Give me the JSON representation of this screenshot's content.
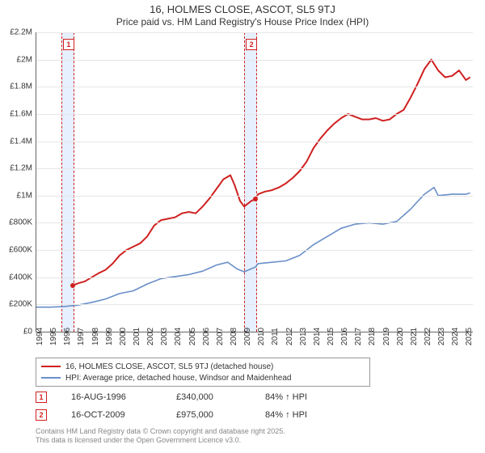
{
  "title": {
    "line1": "16, HOLMES CLOSE, ASCOT, SL5 9TJ",
    "line2": "Price paid vs. HM Land Registry's House Price Index (HPI)",
    "fontsize1": 13,
    "fontsize2": 12,
    "color": "#333333"
  },
  "chart": {
    "type": "line",
    "background_color": "#ffffff",
    "grid_color": "#e6e6e6",
    "axis_color": "#666666",
    "xlim": [
      1994,
      2025.5
    ],
    "ylim": [
      0,
      2200000
    ],
    "ytick_step": 200000,
    "yticks": [
      "£0",
      "£200K",
      "£400K",
      "£600K",
      "£800K",
      "£1M",
      "£1.2M",
      "£1.4M",
      "£1.6M",
      "£1.8M",
      "£2M",
      "£2.2M"
    ],
    "xticks": [
      1994,
      1995,
      1996,
      1997,
      1998,
      1999,
      2000,
      2001,
      2002,
      2003,
      2004,
      2005,
      2006,
      2007,
      2008,
      2009,
      2010,
      2011,
      2012,
      2013,
      2014,
      2015,
      2016,
      2017,
      2018,
      2019,
      2020,
      2021,
      2022,
      2023,
      2024,
      2025
    ],
    "label_fontsize": 10,
    "shaded_bands": [
      {
        "x_from": 1995.8,
        "x_to": 1996.65,
        "fill": "#e6f0ff",
        "border": "#d02020",
        "marker": "1",
        "marker_y": 2150000
      },
      {
        "x_from": 2009.0,
        "x_to": 2009.8,
        "fill": "#e6f0ff",
        "border": "#d02020",
        "marker": "2",
        "marker_y": 2150000
      }
    ],
    "series": [
      {
        "name": "subject",
        "label": "16, HOLMES CLOSE, ASCOT, SL5 9TJ (detached house)",
        "color": "#d02020",
        "line_width": 2,
        "points": [
          [
            1996.63,
            340000
          ],
          [
            1997,
            355000
          ],
          [
            1997.5,
            370000
          ],
          [
            1998,
            400000
          ],
          [
            1998.5,
            430000
          ],
          [
            1999,
            455000
          ],
          [
            1999.5,
            500000
          ],
          [
            2000,
            560000
          ],
          [
            2000.5,
            600000
          ],
          [
            2001,
            625000
          ],
          [
            2001.5,
            650000
          ],
          [
            2002,
            700000
          ],
          [
            2002.5,
            780000
          ],
          [
            2003,
            820000
          ],
          [
            2003.5,
            830000
          ],
          [
            2004,
            840000
          ],
          [
            2004.5,
            870000
          ],
          [
            2005,
            880000
          ],
          [
            2005.5,
            870000
          ],
          [
            2006,
            920000
          ],
          [
            2006.5,
            980000
          ],
          [
            2007,
            1050000
          ],
          [
            2007.5,
            1120000
          ],
          [
            2008,
            1150000
          ],
          [
            2008.3,
            1080000
          ],
          [
            2008.7,
            960000
          ],
          [
            2009,
            920000
          ],
          [
            2009.5,
            960000
          ],
          [
            2009.8,
            975000
          ],
          [
            2010,
            1010000
          ],
          [
            2010.5,
            1030000
          ],
          [
            2011,
            1040000
          ],
          [
            2011.5,
            1060000
          ],
          [
            2012,
            1090000
          ],
          [
            2012.5,
            1130000
          ],
          [
            2013,
            1180000
          ],
          [
            2013.5,
            1250000
          ],
          [
            2014,
            1350000
          ],
          [
            2014.5,
            1420000
          ],
          [
            2015,
            1480000
          ],
          [
            2015.5,
            1530000
          ],
          [
            2016,
            1570000
          ],
          [
            2016.5,
            1600000
          ],
          [
            2017,
            1580000
          ],
          [
            2017.5,
            1560000
          ],
          [
            2018,
            1560000
          ],
          [
            2018.5,
            1570000
          ],
          [
            2019,
            1550000
          ],
          [
            2019.5,
            1560000
          ],
          [
            2020,
            1600000
          ],
          [
            2020.5,
            1630000
          ],
          [
            2021,
            1720000
          ],
          [
            2021.5,
            1820000
          ],
          [
            2022,
            1930000
          ],
          [
            2022.5,
            2000000
          ],
          [
            2023,
            1920000
          ],
          [
            2023.5,
            1870000
          ],
          [
            2024,
            1880000
          ],
          [
            2024.5,
            1920000
          ],
          [
            2025,
            1850000
          ],
          [
            2025.3,
            1870000
          ]
        ],
        "sale_markers": [
          {
            "x": 1996.63,
            "y": 340000,
            "color": "#d02020"
          },
          {
            "x": 2009.8,
            "y": 975000,
            "color": "#d02020"
          }
        ]
      },
      {
        "name": "hpi",
        "label": "HPI: Average price, detached house, Windsor and Maidenhead",
        "color": "#6a8fc9",
        "line_width": 1.6,
        "points": [
          [
            1994,
            180000
          ],
          [
            1995,
            180000
          ],
          [
            1996,
            185000
          ],
          [
            1997,
            195000
          ],
          [
            1998,
            215000
          ],
          [
            1999,
            240000
          ],
          [
            2000,
            280000
          ],
          [
            2001,
            300000
          ],
          [
            2002,
            350000
          ],
          [
            2003,
            390000
          ],
          [
            2004,
            405000
          ],
          [
            2005,
            420000
          ],
          [
            2006,
            445000
          ],
          [
            2007,
            490000
          ],
          [
            2007.8,
            510000
          ],
          [
            2008.5,
            460000
          ],
          [
            2009,
            440000
          ],
          [
            2009.8,
            475000
          ],
          [
            2010,
            500000
          ],
          [
            2011,
            510000
          ],
          [
            2012,
            520000
          ],
          [
            2013,
            560000
          ],
          [
            2014,
            640000
          ],
          [
            2015,
            700000
          ],
          [
            2016,
            760000
          ],
          [
            2017,
            790000
          ],
          [
            2018,
            800000
          ],
          [
            2019,
            790000
          ],
          [
            2020,
            810000
          ],
          [
            2021,
            900000
          ],
          [
            2022,
            1010000
          ],
          [
            2022.7,
            1060000
          ],
          [
            2023,
            1000000
          ],
          [
            2024,
            1010000
          ],
          [
            2025,
            1010000
          ],
          [
            2025.3,
            1020000
          ]
        ]
      }
    ]
  },
  "legend": {
    "border_color": "#999999",
    "fontsize": 10
  },
  "sales": [
    {
      "marker": "1",
      "date": "16-AUG-1996",
      "price": "£340,000",
      "hpi_delta": "84% ↑ HPI"
    },
    {
      "marker": "2",
      "date": "16-OCT-2009",
      "price": "£975,000",
      "hpi_delta": "84% ↑ HPI"
    }
  ],
  "footer": {
    "line1": "Contains HM Land Registry data © Crown copyright and database right 2025.",
    "line2": "This data is licensed under the Open Government Licence v3.0.",
    "color": "#888888",
    "fontsize": 9
  }
}
